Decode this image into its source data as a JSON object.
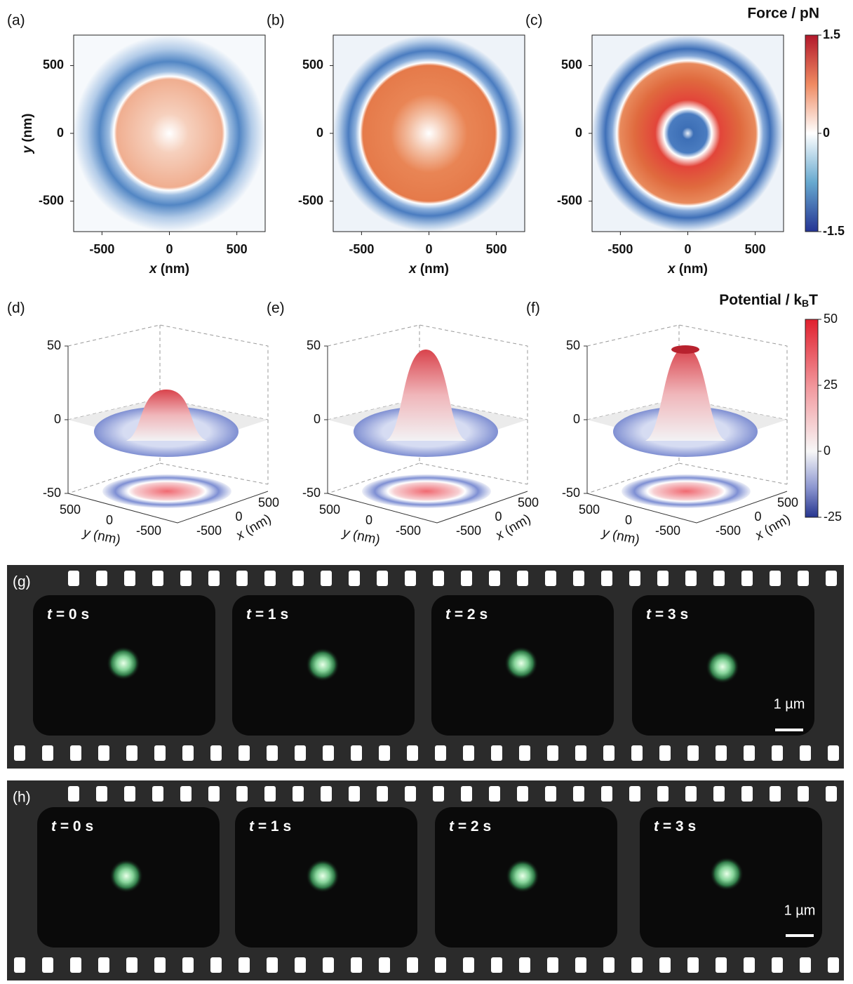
{
  "force_maps": {
    "panels": [
      {
        "label": "(a)"
      },
      {
        "label": "(b)"
      },
      {
        "label": "(c)"
      }
    ],
    "xlim": [
      -710,
      710
    ],
    "ylim": [
      -725,
      725
    ],
    "xticks": [
      -500,
      0,
      500
    ],
    "yticks": [
      -500,
      0,
      500
    ],
    "x_label_var": "x",
    "x_label_unit": " (nm)",
    "y_label_var": "y",
    "y_label_unit": " (nm)",
    "colorbar": {
      "title": "Force /  pN",
      "lim": [
        -1.5,
        1.5
      ],
      "ticks": [
        1.5,
        0,
        -1.5
      ]
    }
  },
  "potential_maps": {
    "panels": [
      {
        "label": "(d)"
      },
      {
        "label": "(e)"
      },
      {
        "label": "(f)"
      }
    ],
    "zlim": [
      -50,
      50
    ],
    "zticks": [
      50,
      0,
      -50
    ],
    "yticks": [
      500,
      0,
      -500
    ],
    "xticks": [
      -500,
      0,
      500
    ],
    "x_label_var": "x",
    "x_label_unit": " (nm)",
    "y_label_var": "y",
    "y_label_unit": " (nm)",
    "colorbar": {
      "title_main": "Potential / k",
      "title_sub": "B",
      "title_end": "T",
      "lim": [
        -25,
        50
      ],
      "ticks": [
        50,
        25,
        0,
        -25
      ]
    }
  },
  "timelapse": [
    {
      "label": "(g)",
      "scale": "1 µm",
      "frames": [
        {
          "time_var": "t",
          "time_rest": " = 0 s"
        },
        {
          "time_var": "t",
          "time_rest": " = 1 s"
        },
        {
          "time_var": "t",
          "time_rest": " = 2 s"
        },
        {
          "time_var": "t",
          "time_rest": " = 3 s"
        }
      ]
    },
    {
      "label": "(h)",
      "scale": "1 µm",
      "frames": [
        {
          "time_var": "t",
          "time_rest": " = 0 s"
        },
        {
          "time_var": "t",
          "time_rest": " = 1 s"
        },
        {
          "time_var": "t",
          "time_rest": " = 2 s"
        },
        {
          "time_var": "t",
          "time_rest": " = 3 s"
        }
      ]
    }
  ]
}
